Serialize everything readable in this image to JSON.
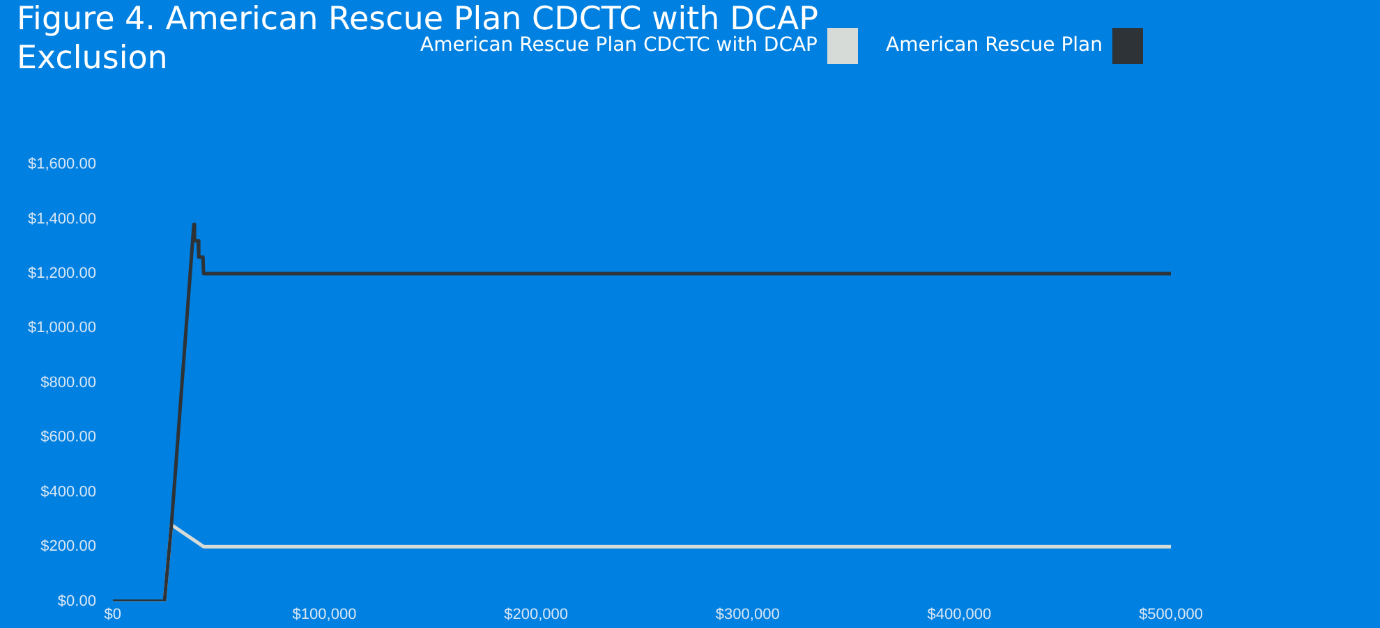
{
  "chart_data": {
    "type": "line",
    "title": "Figure 4. American Rescue Plan CDCTC with DCAP Exclusion",
    "series": [
      {
        "name": "American Rescue Plan",
        "color": "#2e3338",
        "x": [
          0,
          24400,
          27700,
          38300,
          38600,
          40300,
          40600,
          42600,
          42900,
          500000
        ],
        "values": [
          0,
          0,
          280,
          1380,
          1320,
          1320,
          1260,
          1260,
          1200,
          1200
        ]
      },
      {
        "name": "American Rescue Plan CDCTC with DCAP",
        "color": "#d6dbd8",
        "x": [
          0,
          24400,
          27700,
          42900,
          500000
        ],
        "values": [
          0,
          0,
          280,
          200,
          200
        ]
      }
    ],
    "xlim": [
      0,
      500000
    ],
    "xticks": [
      {
        "value": 0,
        "label": "$0"
      },
      {
        "value": 100000,
        "label": "$100,000"
      },
      {
        "value": 200000,
        "label": "$200,000"
      },
      {
        "value": 300000,
        "label": "$300,000"
      },
      {
        "value": 400000,
        "label": "$400,000"
      },
      {
        "value": 500000,
        "label": "$500,000"
      }
    ],
    "ylim": [
      0,
      1600
    ],
    "yticks": [
      {
        "value": 0,
        "label": "$0.00"
      },
      {
        "value": 200,
        "label": "$200.00"
      },
      {
        "value": 400,
        "label": "$400.00"
      },
      {
        "value": 600,
        "label": "$600.00"
      },
      {
        "value": 800,
        "label": "$800.00"
      },
      {
        "value": 1000,
        "label": "$1,000.00"
      },
      {
        "value": 1200,
        "label": "$1,200.00"
      },
      {
        "value": 1400,
        "label": "$1,400.00"
      },
      {
        "value": 1600,
        "label": "$1,600.00"
      }
    ],
    "grid": false,
    "legend": "top right",
    "marker": "none",
    "line_style": "solid"
  }
}
